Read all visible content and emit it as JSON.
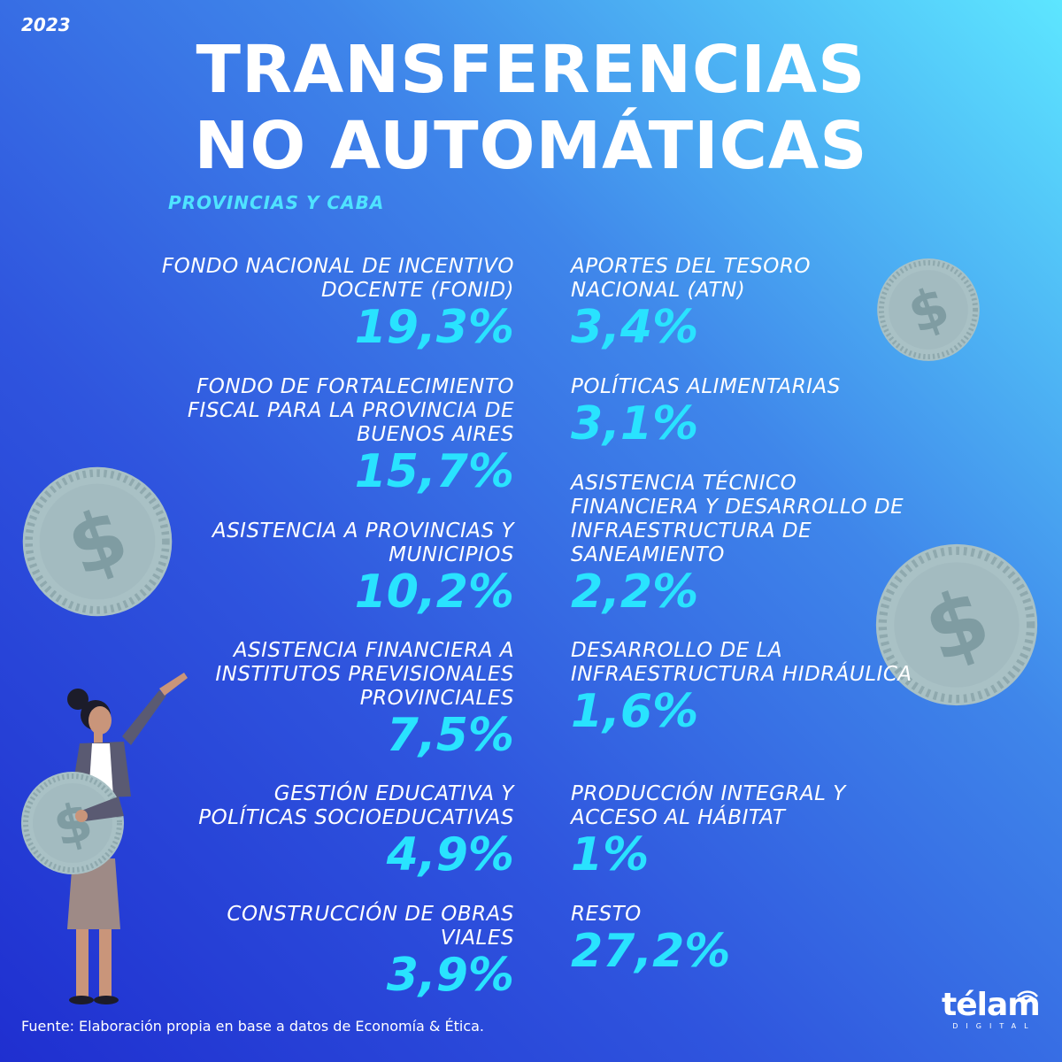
{
  "year": "2023",
  "title": {
    "line1": "TRANSFERENCIAS",
    "line2": "NO AUTOMÁTICAS"
  },
  "subtitle": "PROVINCIAS Y CABA",
  "items_left": [
    {
      "label": "FONDO NACIONAL DE INCENTIVO DOCENTE (FONID)",
      "value": "19,3%"
    },
    {
      "label": "FONDO DE FORTALECIMIENTO FISCAL PARA LA PROVINCIA DE BUENOS AIRES",
      "value": "15,7%"
    },
    {
      "label": "ASISTENCIA A PROVINCIAS Y MUNICIPIOS",
      "value": "10,2%"
    },
    {
      "label": "ASISTENCIA FINANCIERA A INSTITUTOS PREVISIONALES PROVINCIALES",
      "value": "7,5%"
    },
    {
      "label": "GESTIÓN EDUCATIVA Y POLÍTICAS SOCIOEDUCATIVAS",
      "value": "4,9%"
    },
    {
      "label": "CONSTRUCCIÓN DE OBRAS VIALES",
      "value": "3,9%"
    }
  ],
  "items_right": [
    {
      "label": "APORTES DEL TESORO NACIONAL (ATN)",
      "value": "3,4%"
    },
    {
      "label": "POLÍTICAS ALIMENTARIAS",
      "value": "3,1%"
    },
    {
      "label": "ASISTENCIA TÉCNICO FINANCIERA Y DESARROLLO DE INFRAESTRUCTURA DE SANEAMIENTO",
      "value": "2,2%"
    },
    {
      "label": "DESARROLLO DE LA INFRAESTRUCTURA HIDRÁULICA",
      "value": "1,6%"
    },
    {
      "label": "PRODUCCIÓN INTEGRAL Y ACCESO AL HÁBITAT",
      "value": "1%"
    },
    {
      "label": "RESTO",
      "value": "27,2%"
    }
  ],
  "source": "Fuente: Elaboración propia en base a datos de Economía & Ética.",
  "logo": {
    "word": "télam",
    "sub": "DIGITAL"
  },
  "colors": {
    "accent": "#29e3ff",
    "subtitle": "#4fe3ff",
    "coin": "#a9c1c5",
    "text": "#ffffff"
  },
  "icons": [
    "coin-icon",
    "dollar-icon",
    "woman-figure",
    "signal-icon"
  ]
}
